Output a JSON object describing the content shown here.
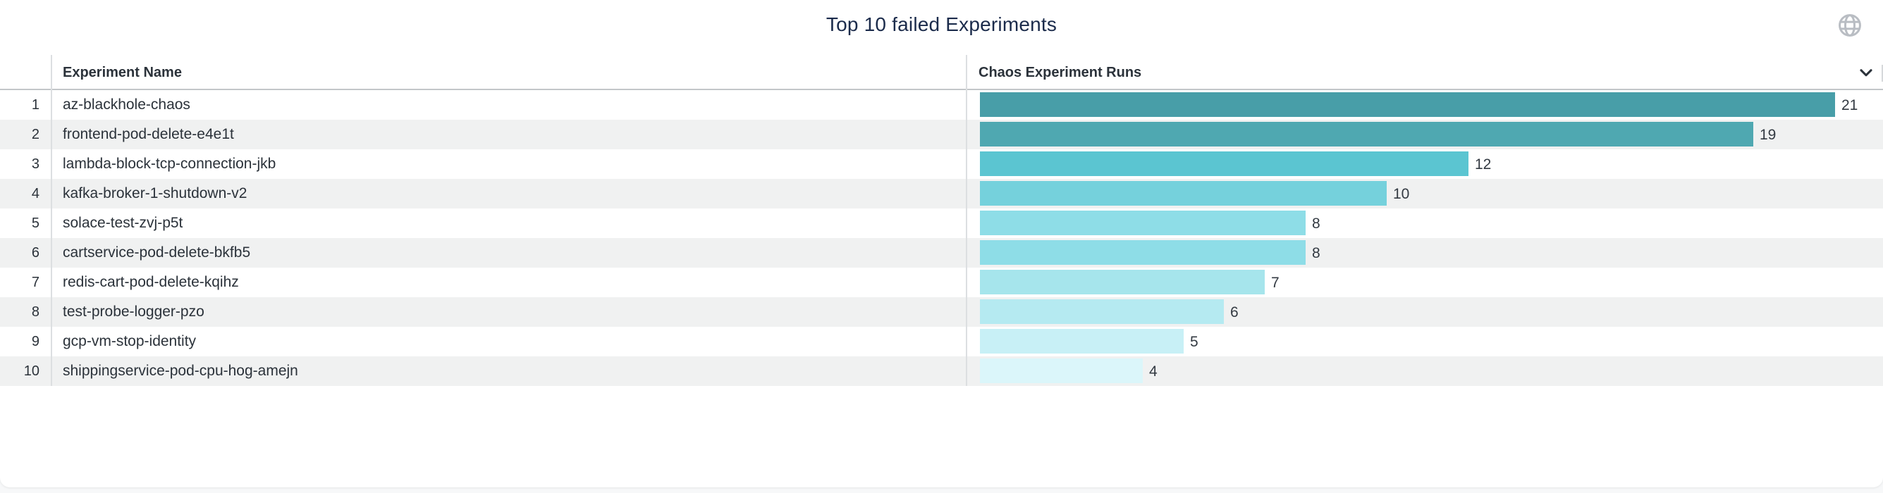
{
  "header": {
    "title": "Top 10 failed Experiments",
    "globe_icon": "globe",
    "sort_icon": "chevron-down"
  },
  "table": {
    "columns": [
      {
        "label": ""
      },
      {
        "label": "Experiment Name"
      },
      {
        "label": "Chaos Experiment Runs"
      }
    ],
    "rows": [
      {
        "rank": "1",
        "name": "az-blackhole-chaos",
        "runs": 21,
        "bar_color": "#489EA8"
      },
      {
        "rank": "2",
        "name": "frontend-pod-delete-e4e1t",
        "runs": 19,
        "bar_color": "#4FA8B1"
      },
      {
        "rank": "3",
        "name": "lambda-block-tcp-connection-jkb",
        "runs": 12,
        "bar_color": "#5BC5D1"
      },
      {
        "rank": "4",
        "name": "kafka-broker-1-shutdown-v2",
        "runs": 10,
        "bar_color": "#75D1DC"
      },
      {
        "rank": "5",
        "name": "solace-test-zvj-p5t",
        "runs": 8,
        "bar_color": "#8EDDE7"
      },
      {
        "rank": "6",
        "name": "cartservice-pod-delete-bkfb5",
        "runs": 8,
        "bar_color": "#8EDDE7"
      },
      {
        "rank": "7",
        "name": "redis-cart-pod-delete-kqihz",
        "runs": 7,
        "bar_color": "#A6E5EC"
      },
      {
        "rank": "8",
        "name": "test-probe-logger-pzo",
        "runs": 6,
        "bar_color": "#B5EAF1"
      },
      {
        "rank": "9",
        "name": "gcp-vm-stop-identity",
        "runs": 5,
        "bar_color": "#C8F0F6"
      },
      {
        "rank": "10",
        "name": "shippingservice-pod-cpu-hog-amejn",
        "runs": 4,
        "bar_color": "#DBF6FA"
      }
    ]
  },
  "colors": {
    "row_stripe": "#F0F1F1",
    "header_border": "#C3C6C9",
    "column_divider": "#DCDFE1",
    "title_text": "#1B2B4B",
    "header_text": "#2B323A",
    "body_text": "#2B323A",
    "value_text": "#333A42",
    "globe_icon": "#B9BDC3",
    "sort_icon": "#2B323A"
  },
  "chart_data": {
    "type": "bar",
    "orientation": "horizontal",
    "title": "Top 10 failed Experiments",
    "categories": [
      "az-blackhole-chaos",
      "frontend-pod-delete-e4e1t",
      "lambda-block-tcp-connection-jkb",
      "kafka-broker-1-shutdown-v2",
      "solace-test-zvj-p5t",
      "cartservice-pod-delete-bkfb5",
      "redis-cart-pod-delete-kqihz",
      "test-probe-logger-pzo",
      "gcp-vm-stop-identity",
      "shippingservice-pod-cpu-hog-amejn"
    ],
    "values": [
      21,
      19,
      12,
      10,
      8,
      8,
      7,
      6,
      5,
      4
    ],
    "series_label": "Chaos Experiment Runs",
    "xlim": [
      0,
      22
    ],
    "bar_colors": [
      "#489EA8",
      "#4FA8B1",
      "#5BC5D1",
      "#75D1DC",
      "#8EDDE7",
      "#8EDDE7",
      "#A6E5EC",
      "#B5EAF1",
      "#C8F0F6",
      "#DBF6FA"
    ],
    "value_labels_shown": true,
    "grid": false,
    "legend": "none"
  }
}
